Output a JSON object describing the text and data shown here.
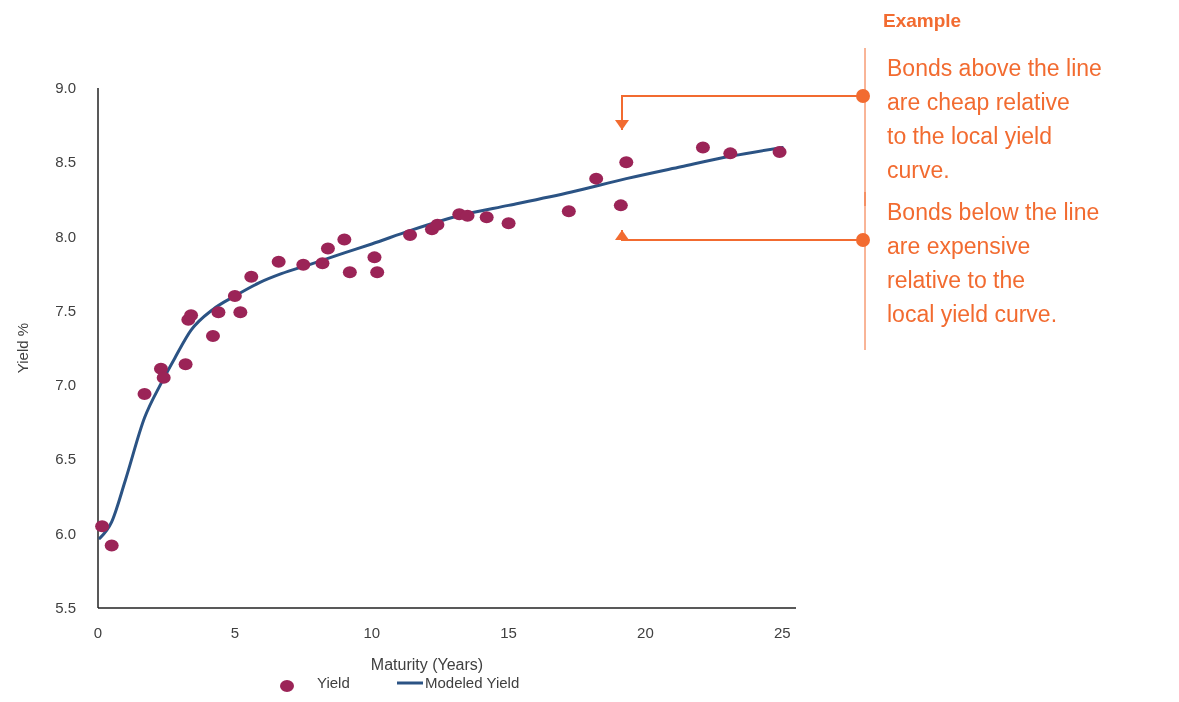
{
  "chart_data": {
    "type": "scatter",
    "xlabel": "Maturity (Years)",
    "ylabel": "Yield %",
    "xlim": [
      0,
      25.5
    ],
    "xticks": [
      0,
      5,
      10,
      15,
      20,
      25
    ],
    "ylim": [
      5.5,
      9.0
    ],
    "yticks": [
      {
        "value": 5.5,
        "label": "5.5"
      },
      {
        "value": 6.0,
        "label": "6.0"
      },
      {
        "value": 6.5,
        "label": "6.5"
      },
      {
        "value": 7.0,
        "label": "7.0"
      },
      {
        "value": 7.5,
        "label": "7.5"
      },
      {
        "value": 8.0,
        "label": "8.0"
      },
      {
        "value": 8.5,
        "label": "8.5"
      },
      {
        "value": 9.0,
        "label": "9.0"
      }
    ],
    "grid": false,
    "legend": "bottom",
    "series": [
      {
        "name": "Yield",
        "marker": "circle",
        "color": "#9b2457",
        "x": [
          0.15,
          0.5,
          1.7,
          2.3,
          2.4,
          3.2,
          3.3,
          3.4,
          4.2,
          4.4,
          5.0,
          5.2,
          5.6,
          6.6,
          7.5,
          8.2,
          8.4,
          9.0,
          9.2,
          10.1,
          10.2,
          11.4,
          12.2,
          12.4,
          13.2,
          13.5,
          14.2,
          15.0,
          17.2,
          18.2,
          19.1,
          19.3,
          22.1,
          23.1,
          24.9
        ],
        "values": [
          6.05,
          5.92,
          6.94,
          7.11,
          7.05,
          7.14,
          7.44,
          7.47,
          7.33,
          7.49,
          7.6,
          7.49,
          7.73,
          7.83,
          7.81,
          7.82,
          7.92,
          7.98,
          7.76,
          7.86,
          7.76,
          8.01,
          8.05,
          8.08,
          8.15,
          8.14,
          8.13,
          8.09,
          8.17,
          8.39,
          8.21,
          8.5,
          8.6,
          8.56,
          8.57
        ]
      },
      {
        "name": "Modeled Yield",
        "type": "line",
        "line_style": "solid",
        "marker": "none",
        "color": "#2b5384",
        "x": [
          0.07,
          0.5,
          1.0,
          1.7,
          2.3,
          2.8,
          3.4,
          4.2,
          5.0,
          5.9,
          6.7,
          7.7,
          9.0,
          10.0,
          11.4,
          13.4,
          15.0,
          17.3,
          19.3,
          21.3,
          23.1,
          25.0
        ],
        "values": [
          5.97,
          6.08,
          6.36,
          6.78,
          7.01,
          7.18,
          7.37,
          7.51,
          7.6,
          7.69,
          7.75,
          7.81,
          7.89,
          7.95,
          8.04,
          8.15,
          8.21,
          8.3,
          8.39,
          8.47,
          8.54,
          8.6
        ]
      }
    ],
    "annotations": [
      "Example",
      "Bonds above the line are cheap relative to the local yield curve.",
      "Bonds below the line are expensive relative to the local yield curve."
    ]
  }
}
